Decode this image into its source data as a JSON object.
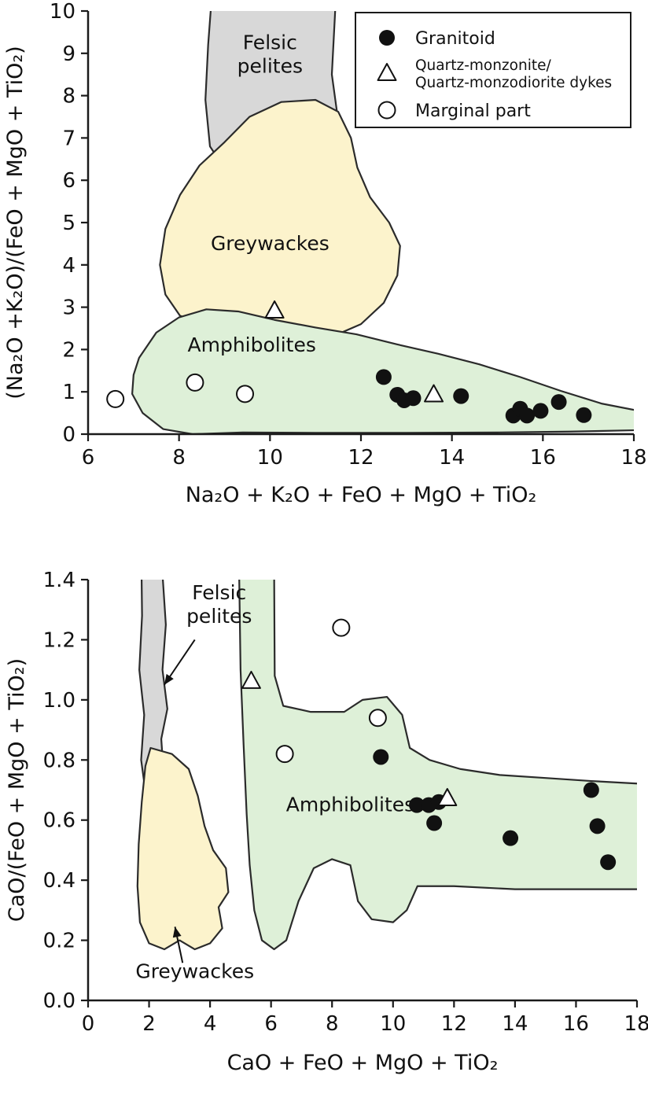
{
  "figure": {
    "background": "#ffffff"
  },
  "colors": {
    "axis": "#1a1a1a",
    "text": "#111111",
    "marker_fill": "#111111",
    "open_fill": "#ffffff",
    "region_stroke": "#2b2b2b",
    "felsic": "#d8d8d8",
    "greywacke": "#fcf3cc",
    "amphibolite": "#def0d8"
  },
  "legend": {
    "items": [
      {
        "id": "granitoid",
        "marker": "filled-circle",
        "lines": [
          "Granitoid"
        ],
        "small": false
      },
      {
        "id": "dykes",
        "marker": "open-triangle",
        "lines": [
          "Quartz-monzonite/",
          "Quartz-monzodiorite dykes"
        ],
        "small": true
      },
      {
        "id": "marginal",
        "marker": "open-circle",
        "lines": [
          "Marginal part"
        ],
        "small": false
      }
    ]
  },
  "chart_data": [
    {
      "id": "top",
      "type": "scatter",
      "xlabel": "Na₂O + K₂O + FeO + MgO + TiO₂",
      "ylabel": "(Na₂O +K₂O)/(FeO + MgO + TiO₂)",
      "xlim": [
        6,
        18
      ],
      "ylim": [
        0,
        10
      ],
      "xticks": {
        "values": [
          6,
          8,
          10,
          12,
          14,
          16,
          18
        ],
        "labels": [
          "6",
          "8",
          "10",
          "12",
          "14",
          "16",
          "18"
        ]
      },
      "yticks": {
        "values": [
          0,
          1,
          2,
          3,
          4,
          5,
          6,
          7,
          8,
          9,
          10
        ],
        "labels": [
          "0",
          "1",
          "2",
          "3",
          "4",
          "5",
          "6",
          "7",
          "8",
          "9",
          "10"
        ]
      },
      "regions": [
        {
          "id": "felsic-pelites",
          "fill": "felsic",
          "points": [
            [
              8.72,
              10.35
            ],
            [
              11.45,
              10.35
            ],
            [
              11.36,
              8.5
            ],
            [
              11.5,
              7.4
            ],
            [
              11.18,
              6.6
            ],
            [
              10.5,
              6.15
            ],
            [
              9.7,
              6.05
            ],
            [
              9.02,
              6.25
            ],
            [
              8.68,
              6.8
            ],
            [
              8.58,
              7.9
            ],
            [
              8.64,
              9.2
            ]
          ]
        },
        {
          "id": "greywackes",
          "fill": "greywacke",
          "points": [
            [
              9.0,
              6.9
            ],
            [
              9.55,
              7.5
            ],
            [
              10.25,
              7.85
            ],
            [
              11.0,
              7.9
            ],
            [
              11.5,
              7.62
            ],
            [
              11.78,
              7.0
            ],
            [
              11.92,
              6.3
            ],
            [
              12.2,
              5.6
            ],
            [
              12.62,
              5.0
            ],
            [
              12.86,
              4.45
            ],
            [
              12.8,
              3.75
            ],
            [
              12.5,
              3.1
            ],
            [
              12.0,
              2.6
            ],
            [
              11.4,
              2.32
            ],
            [
              10.7,
              2.22
            ],
            [
              10.0,
              2.35
            ],
            [
              9.3,
              2.5
            ],
            [
              8.6,
              2.55
            ],
            [
              8.02,
              2.8
            ],
            [
              7.7,
              3.3
            ],
            [
              7.58,
              4.0
            ],
            [
              7.7,
              4.85
            ],
            [
              8.02,
              5.65
            ],
            [
              8.45,
              6.35
            ]
          ]
        },
        {
          "id": "amphibolites",
          "fill": "amphibolite",
          "points": [
            [
              7.12,
              1.8
            ],
            [
              7.5,
              2.4
            ],
            [
              8.0,
              2.76
            ],
            [
              8.6,
              2.95
            ],
            [
              9.3,
              2.9
            ],
            [
              10.1,
              2.7
            ],
            [
              11.0,
              2.52
            ],
            [
              11.9,
              2.36
            ],
            [
              12.8,
              2.12
            ],
            [
              13.7,
              1.9
            ],
            [
              14.6,
              1.65
            ],
            [
              15.5,
              1.35
            ],
            [
              16.4,
              1.02
            ],
            [
              17.3,
              0.72
            ],
            [
              18.35,
              0.5
            ],
            [
              18.35,
              0.1
            ],
            [
              16.6,
              0.06
            ],
            [
              15.0,
              0.04
            ],
            [
              13.0,
              0.03
            ],
            [
              11.0,
              0.03
            ],
            [
              9.4,
              0.04
            ],
            [
              8.3,
              0.0
            ],
            [
              7.65,
              0.12
            ],
            [
              7.2,
              0.5
            ],
            [
              6.97,
              0.95
            ],
            [
              7.0,
              1.4
            ]
          ]
        }
      ],
      "region_labels": [
        {
          "id": "felsic-pelites-label",
          "lines": [
            "Felsic",
            "pelites"
          ],
          "x": 10.0,
          "y": 9.1
        },
        {
          "id": "greywackes-label",
          "lines": [
            "Greywackes"
          ],
          "x": 10.0,
          "y": 4.35
        },
        {
          "id": "amphibolites-label",
          "lines": [
            "Amphibolites"
          ],
          "x": 9.6,
          "y": 1.95
        }
      ],
      "annotations": [],
      "series": [
        {
          "id": "granitoid",
          "name": "Granitoid",
          "marker": "filled-circle",
          "points": [
            [
              12.5,
              1.35
            ],
            [
              12.8,
              0.93
            ],
            [
              12.95,
              0.8
            ],
            [
              13.15,
              0.85
            ],
            [
              14.2,
              0.9
            ],
            [
              15.35,
              0.44
            ],
            [
              15.5,
              0.6
            ],
            [
              15.65,
              0.44
            ],
            [
              15.95,
              0.55
            ],
            [
              16.35,
              0.76
            ],
            [
              16.9,
              0.45
            ]
          ]
        },
        {
          "id": "dykes",
          "name": "Quartz-monzonite/Quartz-monzodiorite dykes",
          "marker": "open-triangle",
          "points": [
            [
              10.1,
              2.9
            ],
            [
              13.6,
              0.92
            ]
          ]
        },
        {
          "id": "marginal",
          "name": "Marginal part",
          "marker": "open-circle",
          "points": [
            [
              6.6,
              0.83
            ],
            [
              8.35,
              1.22
            ],
            [
              9.45,
              0.95
            ]
          ]
        }
      ],
      "show_legend": true
    },
    {
      "id": "bottom",
      "type": "scatter",
      "xlabel": "CaO + FeO + MgO + TiO₂",
      "ylabel": "CaO/(FeO + MgO + TiO₂)",
      "xlim": [
        0,
        18
      ],
      "ylim": [
        0,
        1.4
      ],
      "xticks": {
        "values": [
          0,
          2,
          4,
          6,
          8,
          10,
          12,
          14,
          16,
          18
        ],
        "labels": [
          "0",
          "2",
          "4",
          "6",
          "8",
          "10",
          "12",
          "14",
          "16",
          "18"
        ]
      },
      "yticks": {
        "values": [
          0,
          0.2,
          0.4,
          0.6,
          0.8,
          1.0,
          1.2,
          1.4
        ],
        "labels": [
          "0.0",
          "0.2",
          "0.4",
          "0.6",
          "0.8",
          "1.0",
          "1.2",
          "1.4"
        ]
      },
      "regions": [
        {
          "id": "felsic-pelites",
          "fill": "felsic",
          "points": [
            [
              1.75,
              1.45
            ],
            [
              2.42,
              1.45
            ],
            [
              2.55,
              1.25
            ],
            [
              2.44,
              1.1
            ],
            [
              2.6,
              0.97
            ],
            [
              2.4,
              0.87
            ],
            [
              2.5,
              0.72
            ],
            [
              2.33,
              0.57
            ],
            [
              2.08,
              0.46
            ],
            [
              1.84,
              0.5
            ],
            [
              1.9,
              0.68
            ],
            [
              1.74,
              0.8
            ],
            [
              1.84,
              0.95
            ],
            [
              1.68,
              1.1
            ],
            [
              1.77,
              1.28
            ]
          ]
        },
        {
          "id": "greywackes",
          "fill": "greywacke",
          "points": [
            [
              2.05,
              0.84
            ],
            [
              2.75,
              0.82
            ],
            [
              3.3,
              0.77
            ],
            [
              3.6,
              0.68
            ],
            [
              3.82,
              0.58
            ],
            [
              4.1,
              0.5
            ],
            [
              4.52,
              0.44
            ],
            [
              4.6,
              0.36
            ],
            [
              4.28,
              0.31
            ],
            [
              4.4,
              0.24
            ],
            [
              4.0,
              0.19
            ],
            [
              3.5,
              0.17
            ],
            [
              3.0,
              0.2
            ],
            [
              2.5,
              0.17
            ],
            [
              2.0,
              0.19
            ],
            [
              1.7,
              0.26
            ],
            [
              1.62,
              0.38
            ],
            [
              1.66,
              0.52
            ],
            [
              1.76,
              0.66
            ],
            [
              1.88,
              0.78
            ]
          ]
        },
        {
          "id": "amphibolites",
          "fill": "amphibolite",
          "points": [
            [
              4.95,
              1.45
            ],
            [
              6.1,
              1.45
            ],
            [
              6.12,
              1.08
            ],
            [
              6.4,
              0.98
            ],
            [
              7.3,
              0.96
            ],
            [
              8.4,
              0.96
            ],
            [
              9.0,
              1.0
            ],
            [
              9.8,
              1.01
            ],
            [
              10.3,
              0.95
            ],
            [
              10.55,
              0.84
            ],
            [
              11.2,
              0.8
            ],
            [
              12.2,
              0.77
            ],
            [
              13.5,
              0.75
            ],
            [
              15.0,
              0.74
            ],
            [
              16.5,
              0.73
            ],
            [
              18.3,
              0.72
            ],
            [
              18.3,
              0.37
            ],
            [
              16.0,
              0.37
            ],
            [
              14.0,
              0.37
            ],
            [
              12.0,
              0.38
            ],
            [
              10.8,
              0.38
            ],
            [
              10.45,
              0.3
            ],
            [
              10.0,
              0.26
            ],
            [
              9.3,
              0.27
            ],
            [
              8.85,
              0.33
            ],
            [
              8.6,
              0.45
            ],
            [
              8.0,
              0.47
            ],
            [
              7.4,
              0.44
            ],
            [
              6.9,
              0.33
            ],
            [
              6.5,
              0.2
            ],
            [
              6.1,
              0.17
            ],
            [
              5.7,
              0.2
            ],
            [
              5.45,
              0.3
            ],
            [
              5.3,
              0.45
            ],
            [
              5.2,
              0.62
            ],
            [
              5.1,
              0.85
            ],
            [
              5.0,
              1.1
            ]
          ]
        }
      ],
      "region_labels": [
        {
          "id": "amphibolites-label",
          "lines": [
            "Amphibolites"
          ],
          "x": 8.6,
          "y": 0.63
        }
      ],
      "annotations": [
        {
          "id": "felsic-pelites-annotation",
          "lines": [
            "Felsic",
            "pelites"
          ],
          "x": 4.3,
          "y": 1.335,
          "arrow": {
            "x1": 3.5,
            "y1": 1.2,
            "x2": 2.5,
            "y2": 1.05
          }
        },
        {
          "id": "greywackes-annotation",
          "lines": [
            "Greywackes"
          ],
          "x": 3.5,
          "y": 0.075,
          "arrow": {
            "x1": 3.1,
            "y1": 0.125,
            "x2": 2.85,
            "y2": 0.245
          }
        }
      ],
      "series": [
        {
          "id": "granitoid",
          "name": "Granitoid",
          "marker": "filled-circle",
          "points": [
            [
              9.6,
              0.81
            ],
            [
              10.78,
              0.65
            ],
            [
              11.17,
              0.65
            ],
            [
              11.5,
              0.66
            ],
            [
              11.35,
              0.59
            ],
            [
              13.85,
              0.54
            ],
            [
              16.5,
              0.7
            ],
            [
              16.7,
              0.58
            ],
            [
              17.05,
              0.46
            ]
          ]
        },
        {
          "id": "dykes",
          "name": "Quartz-monzonite/Quartz-monzodiorite dykes",
          "marker": "open-triangle",
          "points": [
            [
              5.35,
              1.06
            ],
            [
              11.78,
              0.67
            ]
          ]
        },
        {
          "id": "marginal",
          "name": "Marginal part",
          "marker": "open-circle",
          "points": [
            [
              8.3,
              1.24
            ],
            [
              9.5,
              0.94
            ],
            [
              6.45,
              0.82
            ]
          ]
        }
      ],
      "show_legend": false
    }
  ]
}
